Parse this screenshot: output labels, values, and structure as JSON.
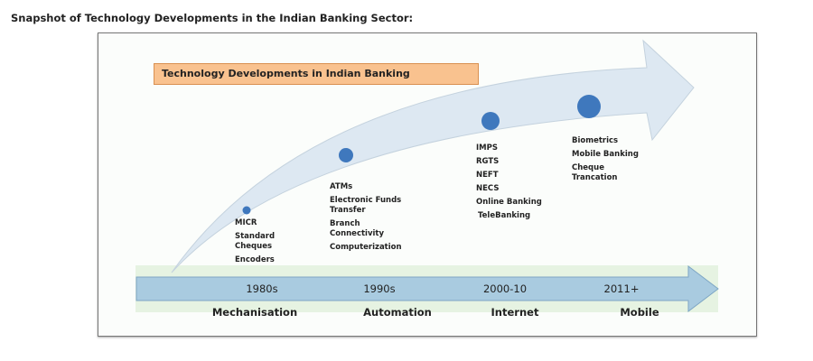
{
  "heading": "Snapshot of Technology Developments in the Indian Banking Sector:",
  "diagram": {
    "label": "Technology Developments in Indian Banking",
    "colors": {
      "curved_arrow": "#dde8f2",
      "dots": "#3f78bd",
      "timeline_arrow": "#a9cbe0",
      "band": "#e6f3e2",
      "label_box": "#f9c28f"
    },
    "stages": [
      {
        "era": "1980s",
        "phase": "Mechanisation",
        "items": [
          "MICR",
          "Standard Cheques",
          "Encoders"
        ]
      },
      {
        "era": "1990s",
        "phase": "Automation",
        "items": [
          "ATMs",
          "Electronic Funds Transfer",
          "Branch Connectivity",
          "Computerization"
        ]
      },
      {
        "era": "2000-10",
        "phase": "Internet",
        "items": [
          "IMPS",
          "RGTS",
          "NEFT",
          "NECS",
          "Online Banking",
          "TeleBanking"
        ]
      },
      {
        "era": "2011+",
        "phase": "Mobile",
        "items": [
          "Biometrics",
          "Mobile Banking",
          "Cheque Trancation"
        ]
      }
    ]
  }
}
